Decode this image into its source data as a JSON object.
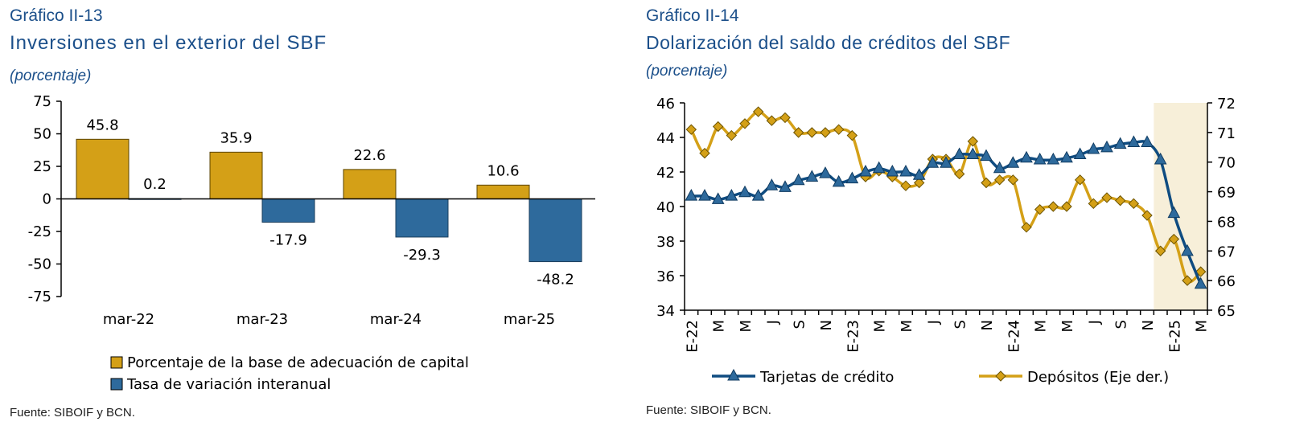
{
  "chart_data": [
    {
      "type": "bar",
      "label": "Gráfico II-13",
      "title": "Inversiones en el exterior del SBF",
      "subtitle": "(porcentaje)",
      "categories": [
        "mar-22",
        "mar-23",
        "mar-24",
        "mar-25"
      ],
      "series": [
        {
          "name": "Porcentaje de la base de adecuación de capital",
          "values": [
            45.8,
            35.9,
            22.6,
            10.6
          ],
          "color": "#D4A017"
        },
        {
          "name": "Tasa de variación interanual",
          "values": [
            0.2,
            -17.9,
            -29.3,
            -48.2
          ],
          "color": "#2E6A9C"
        }
      ],
      "ylim": [
        -75,
        75
      ],
      "yticks": [
        "75",
        "50",
        "25",
        "0",
        "-25",
        "-50",
        "-75"
      ],
      "legend": "bottom",
      "grid": false,
      "source": "Fuente: SIBOIF y BCN."
    },
    {
      "type": "line",
      "label": "Gráfico II-14",
      "title": "Dolarización del saldo de créditos del SBF",
      "subtitle": "(porcentaje)",
      "xticklabels": [
        "E-22",
        "M",
        "M",
        "J",
        "S",
        "N",
        "E-23",
        "M",
        "M",
        "J",
        "S",
        "N",
        "E-24",
        "M",
        "M",
        "J",
        "S",
        "N",
        "E-25",
        "M"
      ],
      "x": [
        "2022-01",
        "2022-02",
        "2022-03",
        "2022-04",
        "2022-05",
        "2022-06",
        "2022-07",
        "2022-08",
        "2022-09",
        "2022-10",
        "2022-11",
        "2022-12",
        "2023-01",
        "2023-02",
        "2023-03",
        "2023-04",
        "2023-05",
        "2023-06",
        "2023-07",
        "2023-08",
        "2023-09",
        "2023-10",
        "2023-11",
        "2023-12",
        "2024-01",
        "2024-02",
        "2024-03",
        "2024-04",
        "2024-05",
        "2024-06",
        "2024-07",
        "2024-08",
        "2024-09",
        "2024-10",
        "2024-11",
        "2024-12",
        "2025-01",
        "2025-02",
        "2025-03"
      ],
      "series": [
        {
          "name": "Tarjetas de crédito",
          "axis": "left",
          "color": "#0F4C81",
          "marker": "triangle",
          "values": [
            40.6,
            40.6,
            40.4,
            40.6,
            40.8,
            40.6,
            41.2,
            41.1,
            41.5,
            41.7,
            41.9,
            41.4,
            41.6,
            42.0,
            42.2,
            42.0,
            42.0,
            41.8,
            42.5,
            42.5,
            43.0,
            43.0,
            42.9,
            42.2,
            42.5,
            42.8,
            42.7,
            42.7,
            42.8,
            43.0,
            43.3,
            43.4,
            43.6,
            43.7,
            43.7,
            42.7,
            39.6,
            37.4,
            35.5
          ]
        },
        {
          "name": "Depósitos (Eje der.)",
          "axis": "right",
          "color": "#D4A017",
          "marker": "diamond",
          "values": [
            71.1,
            70.3,
            71.2,
            70.9,
            71.3,
            71.7,
            71.4,
            71.5,
            71.0,
            71.0,
            71.0,
            71.1,
            70.9,
            69.5,
            69.7,
            69.5,
            69.2,
            69.3,
            70.1,
            70.1,
            69.6,
            70.7,
            69.3,
            69.4,
            69.4,
            67.8,
            68.4,
            68.5,
            68.5,
            69.4,
            68.6,
            68.8,
            68.7,
            68.6,
            68.2,
            67.0,
            67.4,
            66.0,
            66.3
          ]
        }
      ],
      "ylim_left": [
        34,
        46
      ],
      "yticks_left": [
        "34",
        "36",
        "38",
        "40",
        "42",
        "44",
        "46"
      ],
      "ylim_right": [
        65,
        72
      ],
      "yticks_right": [
        "65",
        "66",
        "67",
        "68",
        "69",
        "70",
        "71",
        "72"
      ],
      "shaded_from": "2024-12",
      "shade_color": "#F7EFD9",
      "legend": "bottom",
      "grid": false,
      "source": "Fuente: SIBOIF y BCN."
    }
  ]
}
